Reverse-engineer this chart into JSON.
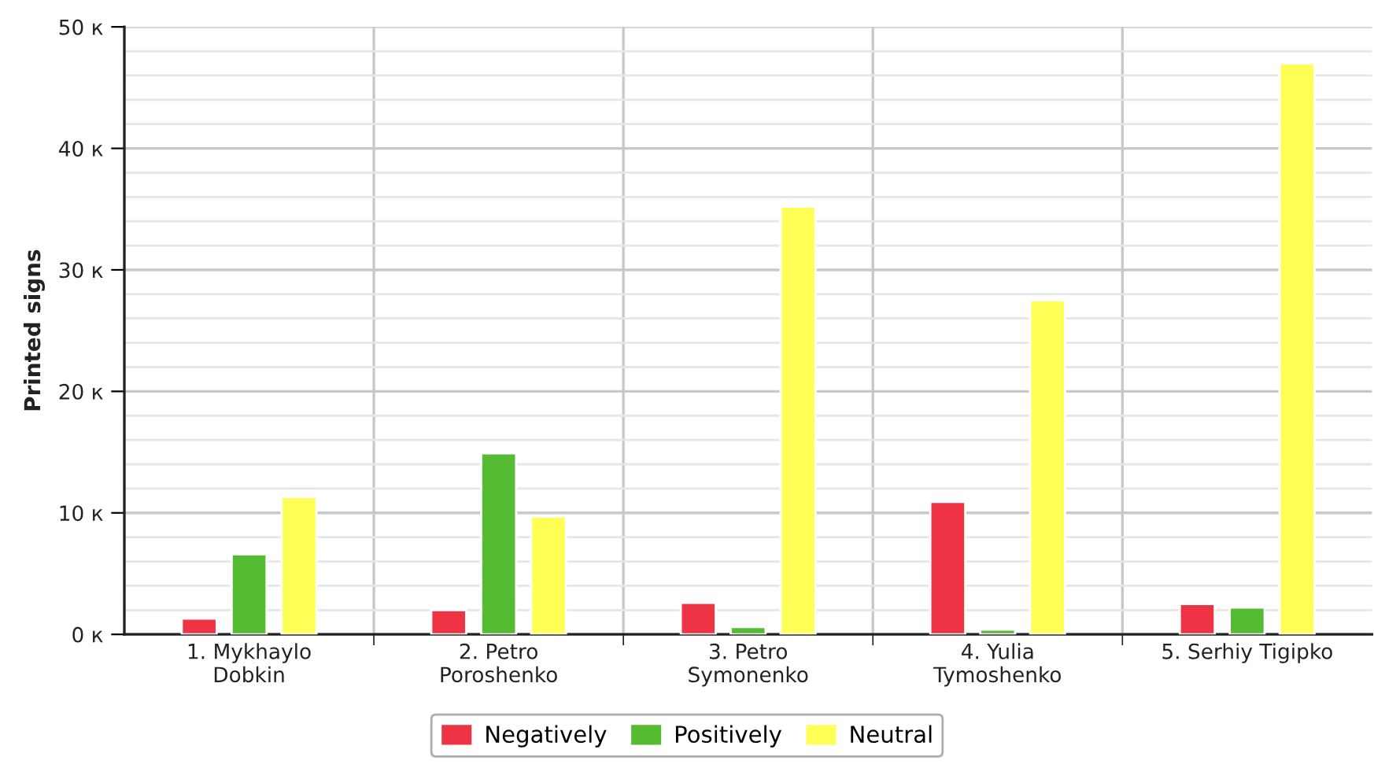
{
  "chart_data": {
    "type": "bar",
    "ylabel": "Printed signs",
    "categories": [
      "1. Mykhaylo\nDobkin",
      "2. Petro\nPoroshenko",
      "3. Petro\nSymonenko",
      "4. Yulia\nTymoshenko",
      "5. Serhiy Tigipko"
    ],
    "series": [
      {
        "name": "Negatively",
        "color": "#ee3344",
        "values": [
          1.3,
          2.0,
          2.6,
          10.9,
          2.5
        ]
      },
      {
        "name": "Positively",
        "color": "#55bb33",
        "values": [
          6.6,
          14.9,
          0.6,
          0.4,
          2.2
        ]
      },
      {
        "name": "Neutral",
        "color": "#ffff55",
        "values": [
          11.3,
          9.7,
          35.2,
          27.5,
          47.0
        ]
      }
    ],
    "ylim": [
      0,
      50
    ],
    "yticks": [
      {
        "value": 0,
        "label": "0 к"
      },
      {
        "value": 2,
        "label": null
      },
      {
        "value": 4,
        "label": null
      },
      {
        "value": 6,
        "label": null
      },
      {
        "value": 8,
        "label": null
      },
      {
        "value": 10,
        "label": "10 к"
      },
      {
        "value": 12,
        "label": null
      },
      {
        "value": 14,
        "label": null
      },
      {
        "value": 16,
        "label": null
      },
      {
        "value": 18,
        "label": null
      },
      {
        "value": 20,
        "label": "20 к"
      },
      {
        "value": 22,
        "label": null
      },
      {
        "value": 24,
        "label": null
      },
      {
        "value": 26,
        "label": null
      },
      {
        "value": 28,
        "label": null
      },
      {
        "value": 30,
        "label": "30 к"
      },
      {
        "value": 32,
        "label": null
      },
      {
        "value": 34,
        "label": null
      },
      {
        "value": 36,
        "label": null
      },
      {
        "value": 38,
        "label": null
      },
      {
        "value": 40,
        "label": "40 к"
      },
      {
        "value": 42,
        "label": null
      },
      {
        "value": 44,
        "label": null
      },
      {
        "value": 46,
        "label": null
      },
      {
        "value": 48,
        "label": null
      },
      {
        "value": 50,
        "label": "50 к"
      }
    ],
    "grid": true,
    "legend": "bottom"
  }
}
